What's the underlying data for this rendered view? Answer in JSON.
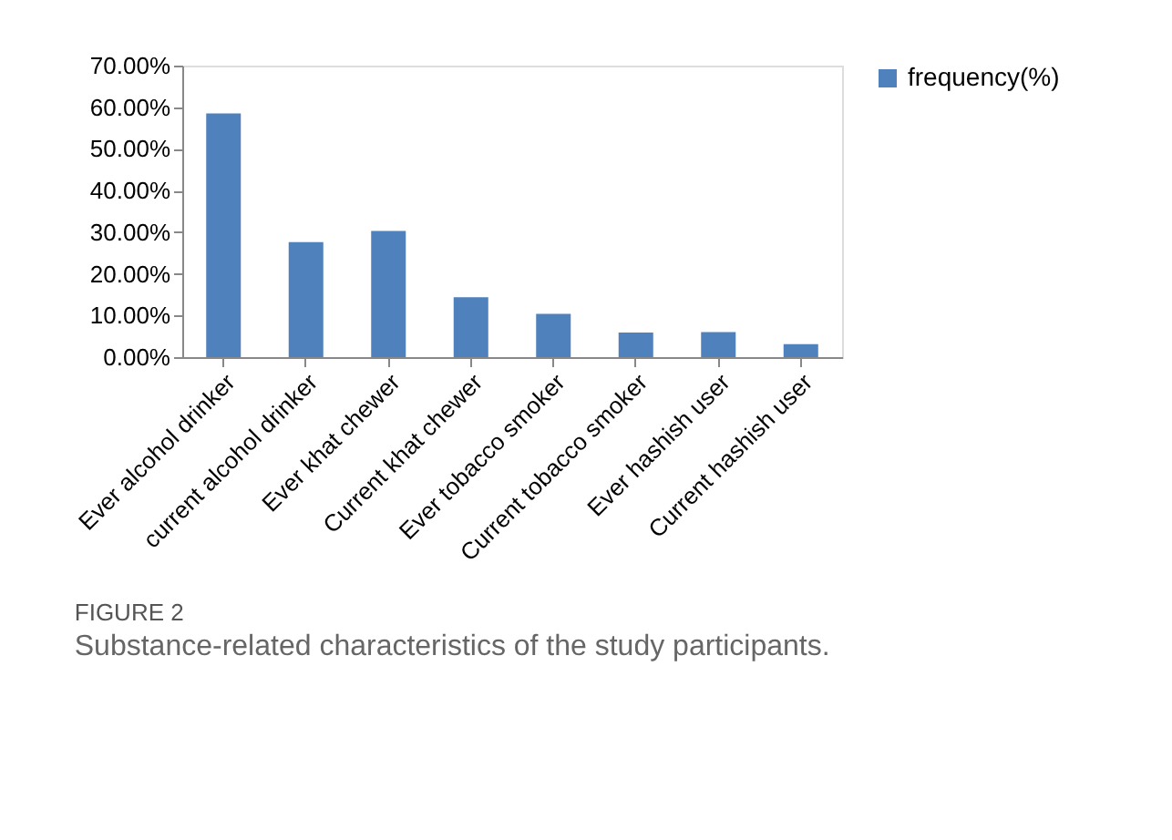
{
  "chart_data": {
    "type": "bar",
    "title": "FIGURE 2",
    "subtitle": "Substance-related characteristics of the study participants.",
    "categories": [
      "Ever alcohol drinker",
      "current alcohol drinker",
      "Ever khat chewer",
      "Current khat chewer",
      "Ever tobacco smoker",
      "Current tobacco smoker",
      "Ever hashish user",
      "Current hashish user"
    ],
    "series": [
      {
        "name": "frequency(%)",
        "color": "#4f81bd",
        "values": [
          58.5,
          27.6,
          30.3,
          14.4,
          10.4,
          5.9,
          6.0,
          3.1
        ]
      }
    ],
    "ylim": [
      0,
      70
    ],
    "yticks": [
      {
        "value": 0,
        "label": "0.00%"
      },
      {
        "value": 10,
        "label": "10.00%"
      },
      {
        "value": 20,
        "label": "20.00%"
      },
      {
        "value": 30,
        "label": "30.00%"
      },
      {
        "value": 40,
        "label": "40.00%"
      },
      {
        "value": 50,
        "label": "50.00%"
      },
      {
        "value": 60,
        "label": "60.00%"
      },
      {
        "value": 70,
        "label": "70.00%"
      }
    ],
    "grid": false,
    "legend": "right"
  }
}
